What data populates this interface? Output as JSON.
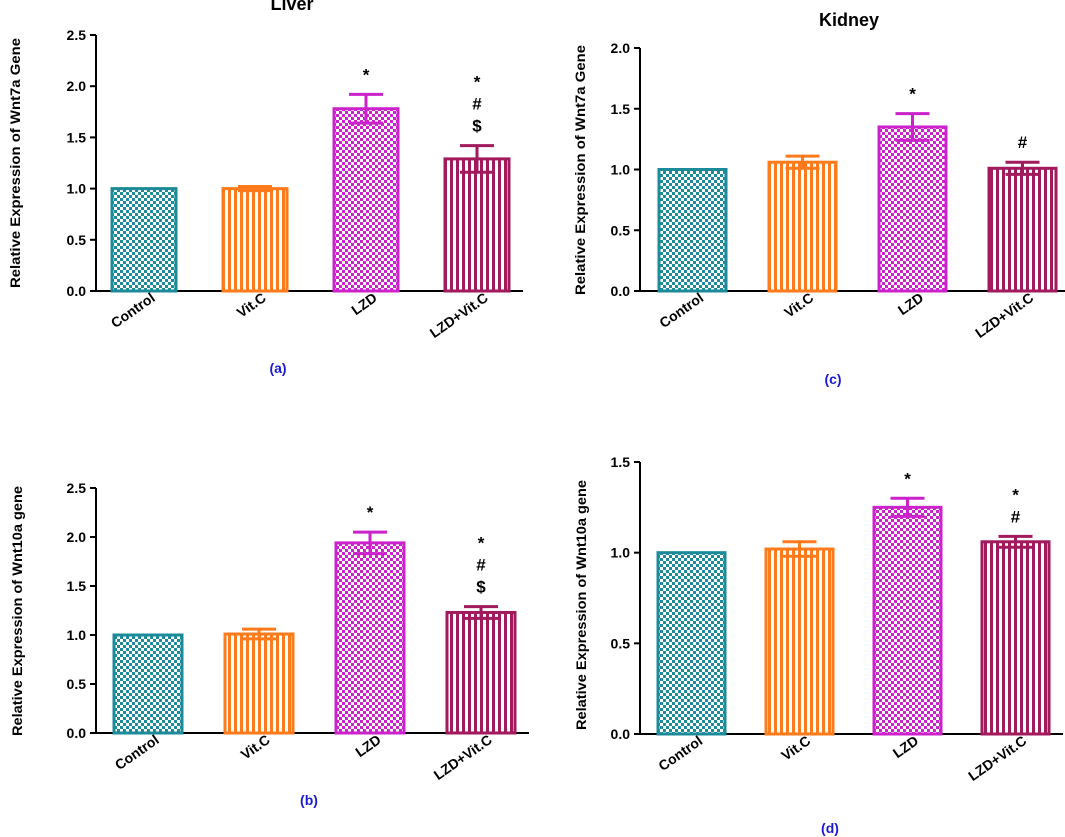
{
  "chart_data": [
    {
      "id": "a",
      "type": "bar",
      "title": "Liver",
      "panel_label": "(a)",
      "ylabel": "Relative Expression of Wnt7a Gene",
      "xlabel": "",
      "categories": [
        "Control",
        "Vit.C",
        "LZD",
        "LZD+Vit.C"
      ],
      "values": [
        1.0,
        1.0,
        1.78,
        1.29
      ],
      "errors": [
        0.0,
        0.02,
        0.14,
        0.13
      ],
      "ylim": [
        0,
        2.5
      ],
      "yticks": [
        "0.0",
        "0.5",
        "1.0",
        "1.5",
        "2.0",
        "2.5"
      ],
      "significance": [
        [],
        [],
        [
          "*"
        ],
        [
          "*",
          "#",
          "$"
        ]
      ]
    },
    {
      "id": "b",
      "type": "bar",
      "title": "",
      "panel_label": "(b)",
      "ylabel": "Relative Expression of Wnt10a gene",
      "xlabel": "",
      "categories": [
        "Control",
        "Vit.C",
        "LZD",
        "LZD+Vit.C"
      ],
      "values": [
        1.0,
        1.01,
        1.94,
        1.23
      ],
      "errors": [
        0.0,
        0.05,
        0.11,
        0.06
      ],
      "ylim": [
        0,
        2.5
      ],
      "yticks": [
        "0.0",
        "0.5",
        "1.0",
        "1.5",
        "2.0",
        "2.5"
      ],
      "significance": [
        [],
        [],
        [
          "*"
        ],
        [
          "*",
          "#",
          "$"
        ]
      ]
    },
    {
      "id": "c",
      "type": "bar",
      "title": "Kidney",
      "panel_label": "(c)",
      "ylabel": "Relative Expression of Wnt7a Gene",
      "xlabel": "",
      "categories": [
        "Control",
        "Vit.C",
        "LZD",
        "LZD+Vit.C"
      ],
      "values": [
        1.0,
        1.06,
        1.35,
        1.01
      ],
      "errors": [
        0.0,
        0.05,
        0.11,
        0.05
      ],
      "ylim": [
        0,
        2.0
      ],
      "yticks": [
        "0.0",
        "0.5",
        "1.0",
        "1.5",
        "2.0"
      ],
      "significance": [
        [],
        [],
        [
          "*"
        ],
        [
          "#"
        ]
      ]
    },
    {
      "id": "d",
      "type": "bar",
      "title": "",
      "panel_label": "(d)",
      "ylabel": "Relative Expression of Wnt10a gene",
      "xlabel": "",
      "categories": [
        "Control",
        "Vit.C",
        "LZD",
        "LZD+Vit.C"
      ],
      "values": [
        1.0,
        1.02,
        1.25,
        1.06
      ],
      "errors": [
        0.0,
        0.04,
        0.05,
        0.03
      ],
      "ylim": [
        0,
        1.5
      ],
      "yticks": [
        "0.0",
        "0.5",
        "1.0",
        "1.5"
      ],
      "significance": [
        [],
        [],
        [
          "*"
        ],
        [
          "*",
          "#"
        ]
      ]
    }
  ],
  "colors": {
    "control": "#1c8a99",
    "vitc": "#ff7a1a",
    "lzd": "#cc22cc",
    "lzdvitc": "#a01a5c",
    "panel_label": "#1a1ad6"
  }
}
